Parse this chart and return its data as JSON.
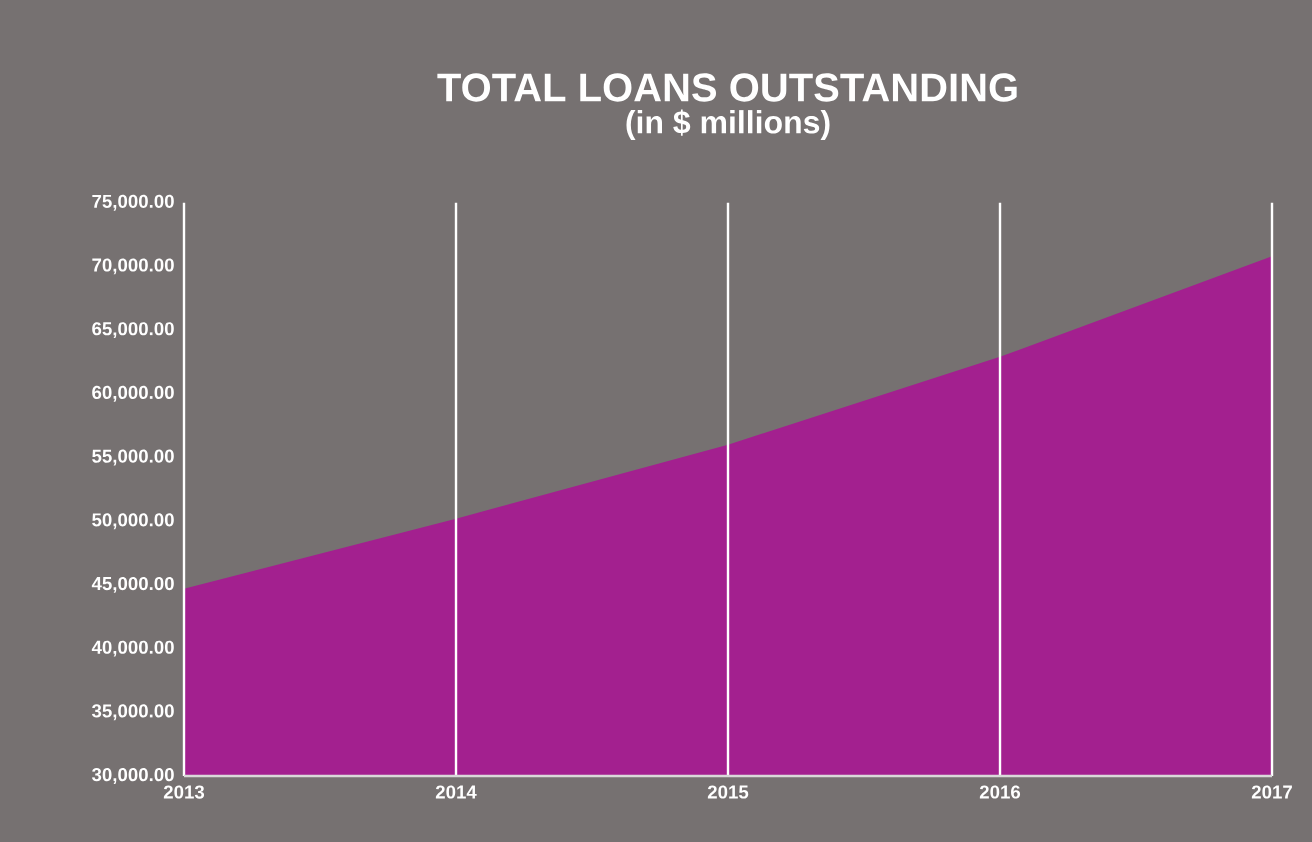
{
  "chart_data": {
    "type": "area",
    "title": "TOTAL LOANS OUTSTANDING",
    "subtitle": "(in $ millions)",
    "categories": [
      "2013",
      "2014",
      "2015",
      "2016",
      "2017"
    ],
    "series": [
      {
        "color": "#a3208f",
        "values": [
          44700,
          50200,
          56000,
          62900,
          70800
        ]
      }
    ],
    "ylim": [
      30000,
      75000
    ],
    "yticks": [
      {
        "value": 30000,
        "label": "30,000.00"
      },
      {
        "value": 35000,
        "label": "35,000.00"
      },
      {
        "value": 40000,
        "label": "40,000.00"
      },
      {
        "value": 45000,
        "label": "45,000.00"
      },
      {
        "value": 50000,
        "label": "50,000.00"
      },
      {
        "value": 55000,
        "label": "55,000.00"
      },
      {
        "value": 60000,
        "label": "60,000.00"
      },
      {
        "value": 65000,
        "label": "65,000.00"
      },
      {
        "value": 70000,
        "label": "70,000.00"
      },
      {
        "value": 75000,
        "label": "75,000.00"
      }
    ],
    "grid": "x"
  }
}
